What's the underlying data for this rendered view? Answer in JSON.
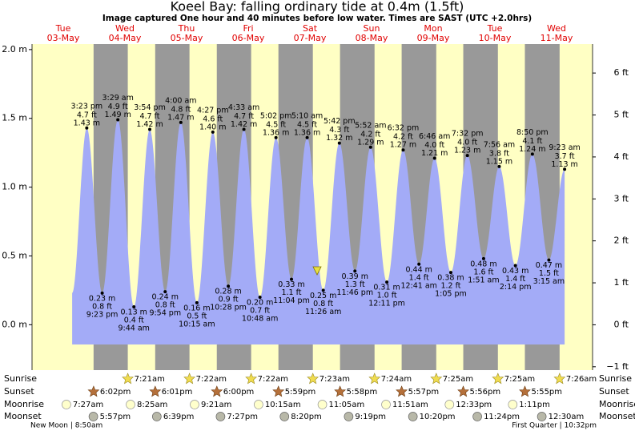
{
  "header": {
    "title": "Koeel Bay: falling  ordinary tide at 0.4m (1.5ft)",
    "subtitle": "Image captured One hour and 40 minutes before low water. Times are SAST (UTC +2.0hrs)"
  },
  "chart_data": {
    "type": "tide",
    "ylim": [
      -0.33,
      2.04
    ],
    "yticks": [
      {
        "value": 2.0,
        "label": "2.0 m"
      },
      {
        "value": 1.5,
        "label": "1.5 m"
      },
      {
        "value": 1.0,
        "label": "1.0 m"
      },
      {
        "value": 0.5,
        "label": "0.5 m"
      },
      {
        "value": 0.0,
        "label": "0.0 m"
      }
    ],
    "y2lim": [
      -1.08,
      6.69
    ],
    "y2ticks": [
      {
        "value": 6,
        "label": "6 ft"
      },
      {
        "value": 5,
        "label": "5 ft"
      },
      {
        "value": 4,
        "label": "4 ft"
      },
      {
        "value": 3,
        "label": "3 ft"
      },
      {
        "value": 2,
        "label": "2 ft"
      },
      {
        "value": 1,
        "label": "1 ft"
      },
      {
        "value": 0,
        "label": "0 ft"
      },
      {
        "value": -1,
        "label": "−1 ft"
      }
    ],
    "row_labels": {
      "sunrise": "Sunrise",
      "sunset": "Sunset",
      "moonrise": "Moonrise",
      "moonset": "Moonset"
    },
    "colors": {
      "day": "#ffffc4",
      "night": "#999999",
      "tide": "#a3abf7",
      "date": "#e00000"
    },
    "days": [
      {
        "weekday": "Tue",
        "date": "03-May",
        "tides": [
          {
            "time": "3:23 pm",
            "m": 1.43,
            "m_label": "1.43 m",
            "ft": 4.7,
            "ft_label": "4.7 ft"
          },
          {
            "time": "9:23 pm",
            "m": 0.23,
            "m_label": "0.23 m",
            "ft": 0.8,
            "ft_label": "0.8 ft"
          }
        ],
        "sunset": "6:02pm",
        "moonrise": "7:27am",
        "moonset": "5:57pm"
      },
      {
        "weekday": "Wed",
        "date": "04-May",
        "tides": [
          {
            "time": "3:29 am",
            "m": 1.49,
            "m_label": "1.49 m",
            "ft": 4.9,
            "ft_label": "4.9 ft"
          },
          {
            "time": "9:44 am",
            "m": 0.13,
            "m_label": "0.13 m",
            "ft": 0.4,
            "ft_label": "0.4 ft"
          },
          {
            "time": "3:54 pm",
            "m": 1.42,
            "m_label": "1.42 m",
            "ft": 4.7,
            "ft_label": "4.7 ft"
          },
          {
            "time": "9:54 pm",
            "m": 0.24,
            "m_label": "0.24 m",
            "ft": 0.8,
            "ft_label": "0.8 ft"
          }
        ],
        "sunrise": "7:21am",
        "sunset": "6:01pm",
        "moonrise": "8:25am",
        "moonset": "6:39pm"
      },
      {
        "weekday": "Thu",
        "date": "05-May",
        "tides": [
          {
            "time": "4:00 am",
            "m": 1.47,
            "m_label": "1.47 m",
            "ft": 4.8,
            "ft_label": "4.8 ft"
          },
          {
            "time": "10:15 am",
            "m": 0.16,
            "m_label": "0.16 m",
            "ft": 0.5,
            "ft_label": "0.5 ft"
          },
          {
            "time": "4:27 pm",
            "m": 1.4,
            "m_label": "1.40 m",
            "ft": 4.6,
            "ft_label": "4.6 ft"
          },
          {
            "time": "10:28 pm",
            "m": 0.28,
            "m_label": "0.28 m",
            "ft": 0.9,
            "ft_label": "0.9 ft"
          }
        ],
        "sunrise": "7:22am",
        "sunset": "6:00pm",
        "moonrise": "9:21am",
        "moonset": "7:27pm"
      },
      {
        "weekday": "Fri",
        "date": "06-May",
        "tides": [
          {
            "time": "4:33 am",
            "m": 1.42,
            "m_label": "1.42 m",
            "ft": 4.7,
            "ft_label": "4.7 ft"
          },
          {
            "time": "10:48 am",
            "m": 0.2,
            "m_label": "0.20 m",
            "ft": 0.7,
            "ft_label": "0.7 ft"
          },
          {
            "time": "5:02 pm",
            "m": 1.36,
            "m_label": "1.36 m",
            "ft": 4.5,
            "ft_label": "4.5 ft"
          },
          {
            "time": "11:04 pm",
            "m": 0.33,
            "m_label": "0.33 m",
            "ft": 1.1,
            "ft_label": "1.1 ft"
          }
        ],
        "sunrise": "7:22am",
        "sunset": "5:59pm",
        "moonrise": "10:15am",
        "moonset": "8:20pm"
      },
      {
        "weekday": "Sat",
        "date": "07-May",
        "tides": [
          {
            "time": "5:10 am",
            "m": 1.36,
            "m_label": "1.36 m",
            "ft": 4.5,
            "ft_label": "4.5 ft"
          },
          {
            "time": "11:26 am",
            "m": 0.25,
            "m_label": "0.25 m",
            "ft": 0.8,
            "ft_label": "0.8 ft"
          },
          {
            "time": "5:42 pm",
            "m": 1.32,
            "m_label": "1.32 m",
            "ft": 4.3,
            "ft_label": "4.3 ft"
          },
          {
            "time": "11:46 pm",
            "m": 0.39,
            "m_label": "0.39 m",
            "ft": 1.3,
            "ft_label": "1.3 ft"
          }
        ],
        "sunrise": "7:23am",
        "sunset": "5:58pm",
        "moonrise": "11:05am",
        "moonset": "9:19pm"
      },
      {
        "weekday": "Sun",
        "date": "08-May",
        "tides": [
          {
            "time": "5:52 am",
            "m": 1.29,
            "m_label": "1.29 m",
            "ft": 4.2,
            "ft_label": "4.2 ft"
          },
          {
            "time": "12:11 pm",
            "m": 0.31,
            "m_label": "0.31 m",
            "ft": 1.0,
            "ft_label": "1.0 ft"
          },
          {
            "time": "6:32 pm",
            "m": 1.27,
            "m_label": "1.27 m",
            "ft": 4.2,
            "ft_label": "4.2 ft"
          }
        ],
        "sunrise": "7:24am",
        "sunset": "5:57pm",
        "moonrise": "11:51am",
        "moonset": "10:20pm"
      },
      {
        "weekday": "Mon",
        "date": "09-May",
        "tides": [
          {
            "time": "12:41 am",
            "m": 0.44,
            "m_label": "0.44 m",
            "ft": 1.4,
            "ft_label": "1.4 ft"
          },
          {
            "time": "6:46 am",
            "m": 1.21,
            "m_label": "1.21 m",
            "ft": 4.0,
            "ft_label": "4.0 ft"
          },
          {
            "time": "1:05 pm",
            "m": 0.38,
            "m_label": "0.38 m",
            "ft": 1.2,
            "ft_label": "1.2 ft"
          },
          {
            "time": "7:32 pm",
            "m": 1.23,
            "m_label": "1.23 m",
            "ft": 4.0,
            "ft_label": "4.0 ft"
          }
        ],
        "sunrise": "7:25am",
        "sunset": "5:56pm",
        "moonrise": "12:33pm",
        "moonset": "11:24pm"
      },
      {
        "weekday": "Tue",
        "date": "10-May",
        "tides": [
          {
            "time": "1:51 am",
            "m": 0.48,
            "m_label": "0.48 m",
            "ft": 1.6,
            "ft_label": "1.6 ft"
          },
          {
            "time": "7:56 am",
            "m": 1.15,
            "m_label": "1.15 m",
            "ft": 3.8,
            "ft_label": "3.8 ft"
          },
          {
            "time": "2:14 pm",
            "m": 0.43,
            "m_label": "0.43 m",
            "ft": 1.4,
            "ft_label": "1.4 ft"
          },
          {
            "time": "8:50 pm",
            "m": 1.24,
            "m_label": "1.24 m",
            "ft": 4.1,
            "ft_label": "4.1 ft"
          }
        ],
        "sunrise": "7:25am",
        "sunset": "5:55pm",
        "moonrise": "1:11pm"
      },
      {
        "weekday": "Wed",
        "date": "11-May",
        "tides": [
          {
            "time": "3:15 am",
            "m": 0.47,
            "m_label": "0.47 m",
            "ft": 1.5,
            "ft_label": "1.5 ft"
          },
          {
            "time": "9:23 am",
            "m": 1.13,
            "m_label": "1.13 m",
            "ft": 3.7,
            "ft_label": "3.7 ft"
          }
        ],
        "sunrise": "7:26am",
        "moonset": "12:30am"
      }
    ],
    "moon_phases": [
      "New Moon | 8:50am",
      "First Quarter | 10:32pm"
    ]
  }
}
